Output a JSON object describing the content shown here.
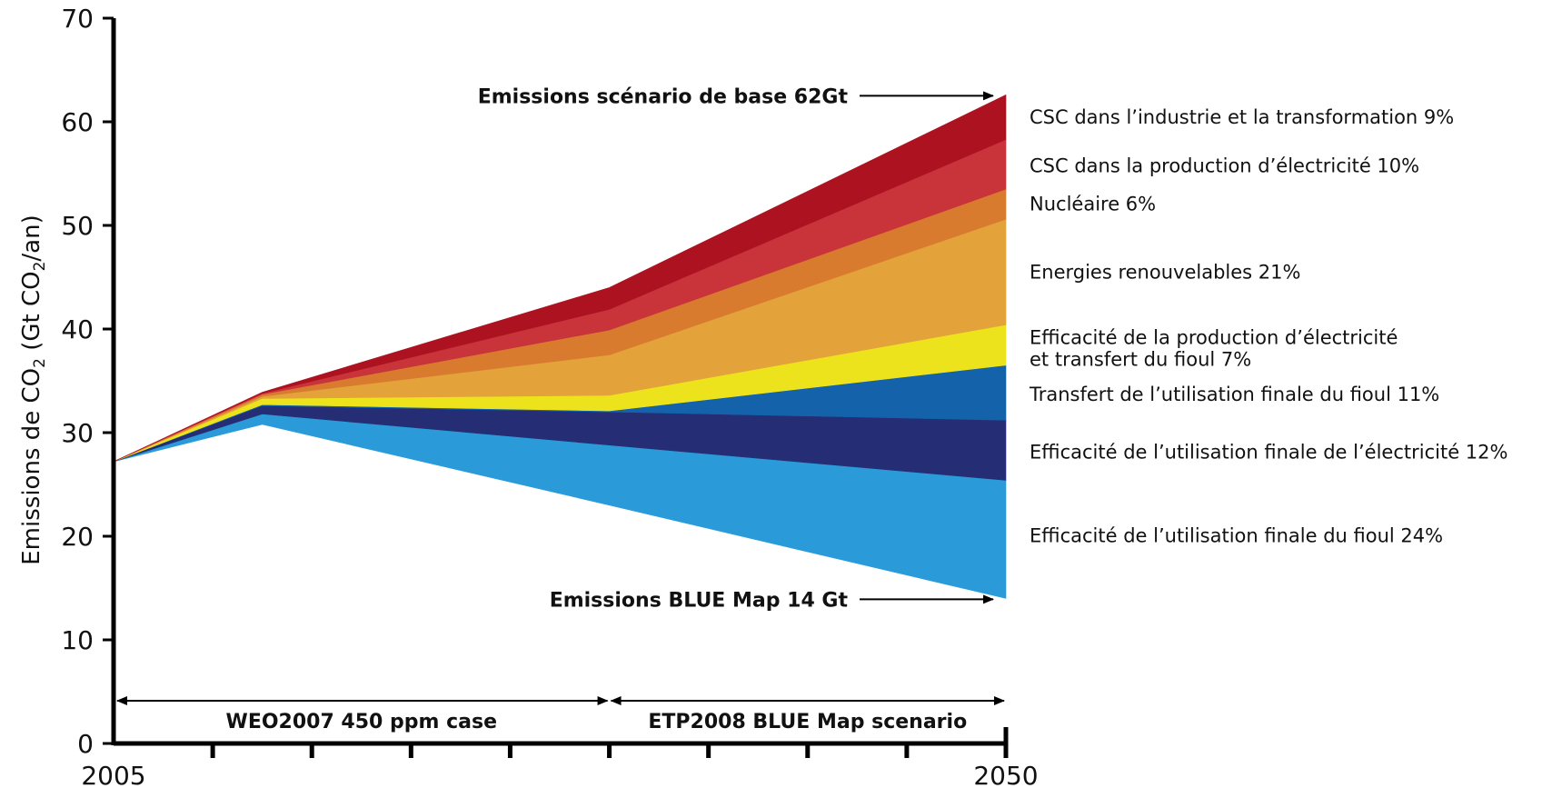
{
  "chart_data": {
    "type": "area",
    "title": "",
    "ylabel_main": "Emissions de CO",
    "ylabel_sub": "2",
    "ylabel_mid": " (Gt CO",
    "ylabel_sub2": "2",
    "ylabel_end": "/an)",
    "xlim": [
      2005,
      2050
    ],
    "ylim": [
      0,
      70
    ],
    "yticks": [
      0,
      10,
      20,
      30,
      40,
      50,
      60,
      70
    ],
    "xtick_labels": [
      {
        "x": 2005,
        "label": "2005"
      },
      {
        "x": 2050,
        "label": "2050"
      }
    ],
    "x_minor_ticks": [
      2010,
      2015,
      2020,
      2025,
      2030,
      2035,
      2040,
      2045
    ],
    "x": [
      2005,
      2012.5,
      2030,
      2050
    ],
    "baseline": [
      27.2,
      30.8,
      23.0,
      14.0
    ],
    "series": [
      {
        "name": "Efficacité de l’utilisation finale du fioul 24%",
        "color": "#2a9ad9",
        "values": [
          0,
          1.0,
          5.8,
          11.4
        ]
      },
      {
        "name": "Efficacité de l’utilisation finale de l’électricité 12%",
        "color": "#252e74",
        "values": [
          0,
          0.8,
          3.2,
          5.8
        ]
      },
      {
        "name": "Transfert de l’utilisation finale du fioul 11%",
        "color": "#1362aa",
        "values": [
          0,
          0.1,
          0.1,
          5.3
        ]
      },
      {
        "name": "Efficacité de la production d’électricité\net transfert du fioul 7%",
        "color": "#ece31d",
        "values": [
          0,
          0.6,
          1.5,
          3.9
        ]
      },
      {
        "name": "Energies renouvelables 21%",
        "color": "#e4a23b",
        "values": [
          0,
          0.2,
          3.9,
          10.2
        ]
      },
      {
        "name": "Nucléaire 6%",
        "color": "#d97b2e",
        "values": [
          0,
          0.2,
          2.4,
          2.9
        ]
      },
      {
        "name": "CSC dans la production d’électricité 10%",
        "color": "#c8343a",
        "values": [
          0,
          0.1,
          2.0,
          4.8
        ]
      },
      {
        "name": "CSC dans l’industrie et la transformation 9%",
        "color": "#ad1220",
        "values": [
          0,
          0.1,
          2.1,
          4.3
        ]
      }
    ],
    "annotations": {
      "baseline_label": "Emissions scénario de base 62Gt",
      "blue_label": "Emissions BLUE Map 14 Gt",
      "period1": "WEO2007 450 ppm case",
      "period2": "ETP2008 BLUE Map scenario"
    },
    "period_split": 2030,
    "grid": false,
    "legend": "right"
  }
}
